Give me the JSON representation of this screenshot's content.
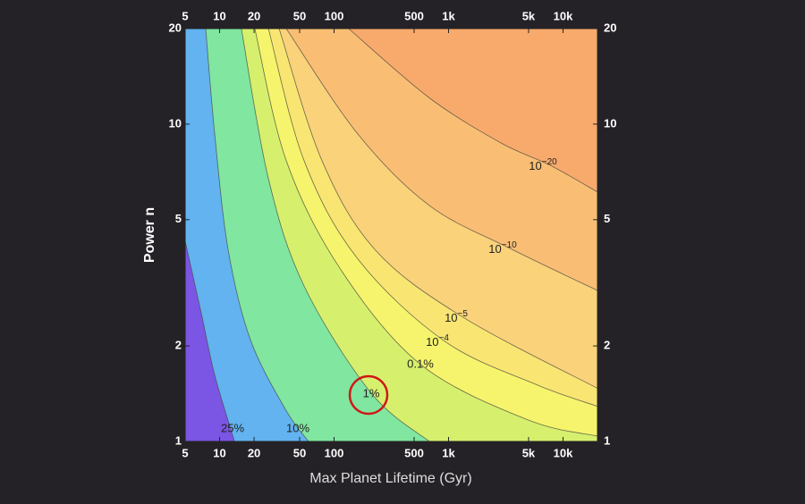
{
  "chart_data": {
    "type": "contour",
    "xlabel": "Max Planet Lifetime (Gyr)",
    "ylabel": "Power n",
    "xscale": "log",
    "yscale": "log",
    "xlim": [
      5,
      20000
    ],
    "ylim": [
      1,
      20
    ],
    "xticks": [
      5,
      10,
      20,
      50,
      100,
      500,
      {
        "value": 1000,
        "label": "1k"
      },
      {
        "value": 5000,
        "label": "5k"
      },
      {
        "value": 10000,
        "label": "10k"
      }
    ],
    "yticks": [
      1,
      2,
      5,
      10,
      20
    ],
    "top_color": "#f8aa6c",
    "series": [
      {
        "name": "25%",
        "color": "#7b55e4",
        "x": [
          5,
          6.91,
          9.06,
          13.5
        ],
        "y": [
          4.28,
          2.54,
          1.62,
          1
        ]
      },
      {
        "name": "10%",
        "color": "#62b3f0",
        "x": [
          7.56,
          9.06,
          11.9,
          18.6,
          38.2,
          59.8
        ],
        "y": [
          20,
          9.31,
          4.0,
          2.09,
          1.25,
          1
        ]
      },
      {
        "name": "1%",
        "color": "#80e6a0",
        "x": [
          15.5,
          26.7,
          54.7,
          211,
          679
        ],
        "y": [
          20,
          6.73,
          3.09,
          1.42,
          1
        ]
      },
      {
        "name": "0.1%",
        "color": "#d6f06e",
        "x": [
          20.3,
          38.2,
          112,
          568,
          4910,
          20000
        ],
        "y": [
          20,
          7.67,
          3.52,
          1.75,
          1.17,
          1.04
        ]
      },
      {
        "name": {
          "base": "10",
          "exponent": "−4"
        },
        "color": "#f6f46c",
        "x": [
          26.7,
          54.7,
          161,
          923,
          5880,
          20000
        ],
        "y": [
          20,
          7.67,
          3.76,
          2.07,
          1.51,
          1.29
        ]
      },
      {
        "name": {
          "base": "10",
          "exponent": "−5"
        },
        "color": "#f9e672",
        "x": [
          33.1,
          78.4,
          231,
          1345,
          20000
        ],
        "y": [
          20,
          7.67,
          4.0,
          2.46,
          1.47
        ]
      },
      {
        "name": {
          "base": "10",
          "exponent": "−10"
        },
        "color": "#fad27a",
        "x": [
          38.2,
          161,
          679,
          3430,
          20000
        ],
        "y": [
          20,
          9.31,
          5.54,
          4.06,
          2.99
        ]
      },
      {
        "name": {
          "base": "10",
          "exponent": "−20"
        },
        "color": "#f9be74",
        "x": [
          134,
          679,
          2860,
          7700,
          20000
        ],
        "y": [
          20,
          12.1,
          8.73,
          7.42,
          6.11
        ]
      }
    ]
  }
}
